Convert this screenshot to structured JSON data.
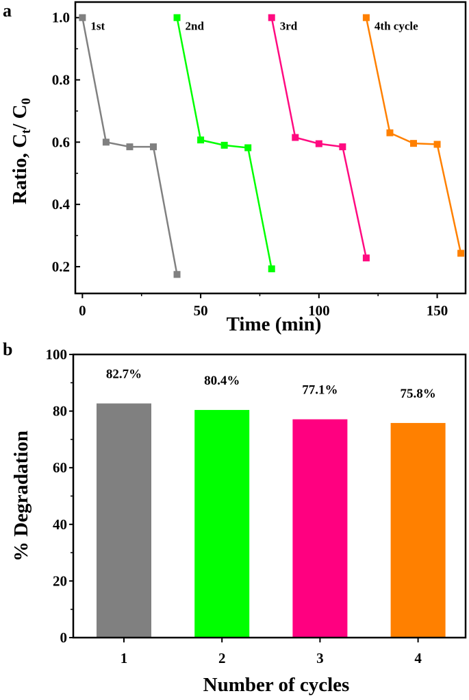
{
  "chart_data": [
    {
      "panel": "a",
      "type": "line",
      "xlabel": "Time (min)",
      "ylabel": "Ratio, C",
      "ylabel_sub1": "t",
      "ylabel_mid": "/ C",
      "ylabel_sub2": "0",
      "xlim": [
        -3,
        162
      ],
      "ylim": [
        0.114,
        1.05
      ],
      "xticks": [
        0,
        50,
        100,
        150
      ],
      "yticks": [
        0.2,
        0.4,
        0.6,
        0.8,
        1.0
      ],
      "ytick_labels": [
        "0.2",
        "0.4",
        "0.6",
        "0.8",
        "1.0"
      ],
      "marker": "square",
      "grid": false,
      "series": [
        {
          "label": "1st",
          "color": "#808080",
          "x": [
            0,
            10,
            20,
            30,
            40
          ],
          "y": [
            1.0,
            0.6,
            0.585,
            0.585,
            0.175
          ]
        },
        {
          "label": "2nd",
          "color": "#00ff00",
          "x": [
            40,
            50,
            60,
            70,
            80
          ],
          "y": [
            1.0,
            0.607,
            0.59,
            0.582,
            0.193
          ]
        },
        {
          "label": "3rd",
          "color": "#ff0a80",
          "x": [
            80,
            90,
            100,
            110,
            120
          ],
          "y": [
            1.0,
            0.615,
            0.595,
            0.585,
            0.228
          ]
        },
        {
          "label": "4th cycle",
          "color": "#ff8000",
          "x": [
            120,
            130,
            140,
            150,
            160
          ],
          "y": [
            1.0,
            0.63,
            0.596,
            0.593,
            0.243
          ]
        }
      ]
    },
    {
      "panel": "b",
      "type": "bar",
      "xlabel": "Number of cycles",
      "ylabel": "% Degradation",
      "categories": [
        "1",
        "2",
        "3",
        "4"
      ],
      "values": [
        82.7,
        80.4,
        77.1,
        75.8
      ],
      "data_labels": [
        "82.7%",
        "80.4%",
        "77.1%",
        "75.8%"
      ],
      "colors": [
        "#808080",
        "#00ff00",
        "#ff0080",
        "#ff8000"
      ],
      "ylim": [
        0,
        100
      ],
      "yticks": [
        0,
        20,
        40,
        60,
        80,
        100
      ],
      "grid": false
    }
  ]
}
